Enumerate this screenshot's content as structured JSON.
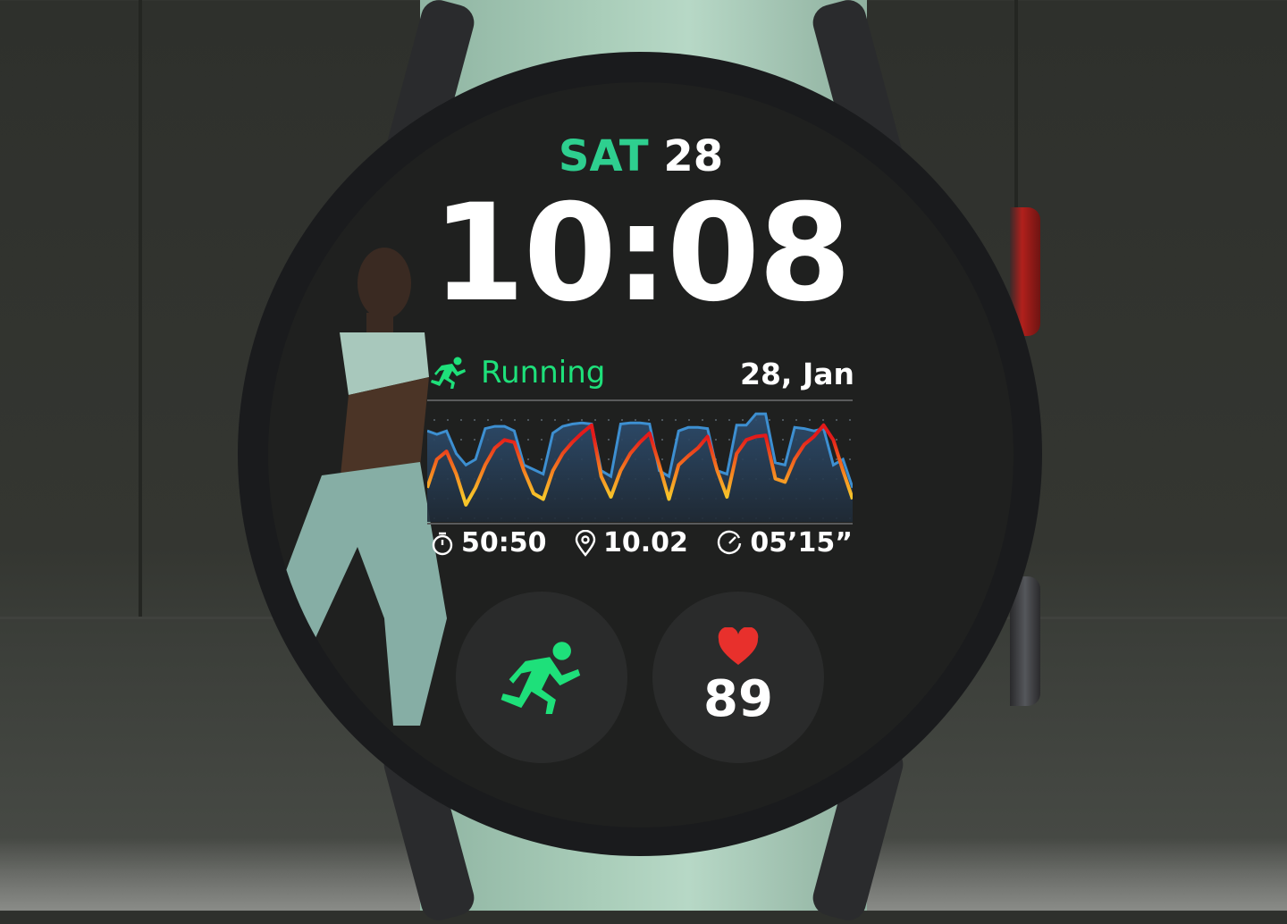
{
  "watch_face": {
    "day": "SAT",
    "date_number": "28",
    "time": "10:08",
    "activity": {
      "label": "Running",
      "icon": "running-icon",
      "color": "#1ee07a"
    },
    "chart_date": "28, Jan",
    "stats": [
      {
        "icon": "stopwatch-icon",
        "value": "50:50"
      },
      {
        "icon": "location-pin-icon",
        "value": "10.02"
      },
      {
        "icon": "pace-gauge-icon",
        "value": "05’15”"
      }
    ],
    "complications": [
      {
        "name": "workout-shortcut",
        "icon": "running-icon"
      },
      {
        "name": "heart-rate",
        "icon": "heart-icon",
        "value": "89"
      }
    ],
    "colors": {
      "accent": "#2ecf8f",
      "heart": "#e8302c",
      "area": "#2e4f72",
      "area_line": "#3d8fd1"
    }
  },
  "chart_data": {
    "type": "area",
    "series": [
      {
        "values": [
          0.8,
          0.77,
          0.8,
          0.6,
          0.5,
          0.55,
          0.82,
          0.84,
          0.84,
          0.8,
          0.5,
          0.46,
          0.42,
          0.78,
          0.84,
          0.86,
          0.87,
          0.86,
          0.45,
          0.4,
          0.86,
          0.87,
          0.87,
          0.86,
          0.45,
          0.4,
          0.8,
          0.83,
          0.83,
          0.82,
          0.45,
          0.42,
          0.85,
          0.85,
          0.95,
          0.95,
          0.52,
          0.5,
          0.83,
          0.82,
          0.8,
          0.82,
          0.5,
          0.55,
          0.3
        ]
      },
      {
        "values": [
          0.3,
          0.55,
          0.62,
          0.42,
          0.15,
          0.3,
          0.5,
          0.65,
          0.72,
          0.7,
          0.45,
          0.25,
          0.2,
          0.45,
          0.6,
          0.7,
          0.78,
          0.85,
          0.4,
          0.22,
          0.45,
          0.6,
          0.7,
          0.78,
          0.5,
          0.2,
          0.5,
          0.58,
          0.65,
          0.75,
          0.45,
          0.22,
          0.6,
          0.72,
          0.75,
          0.76,
          0.38,
          0.35,
          0.55,
          0.68,
          0.75,
          0.85,
          0.72,
          0.45,
          0.2
        ]
      }
    ]
  }
}
